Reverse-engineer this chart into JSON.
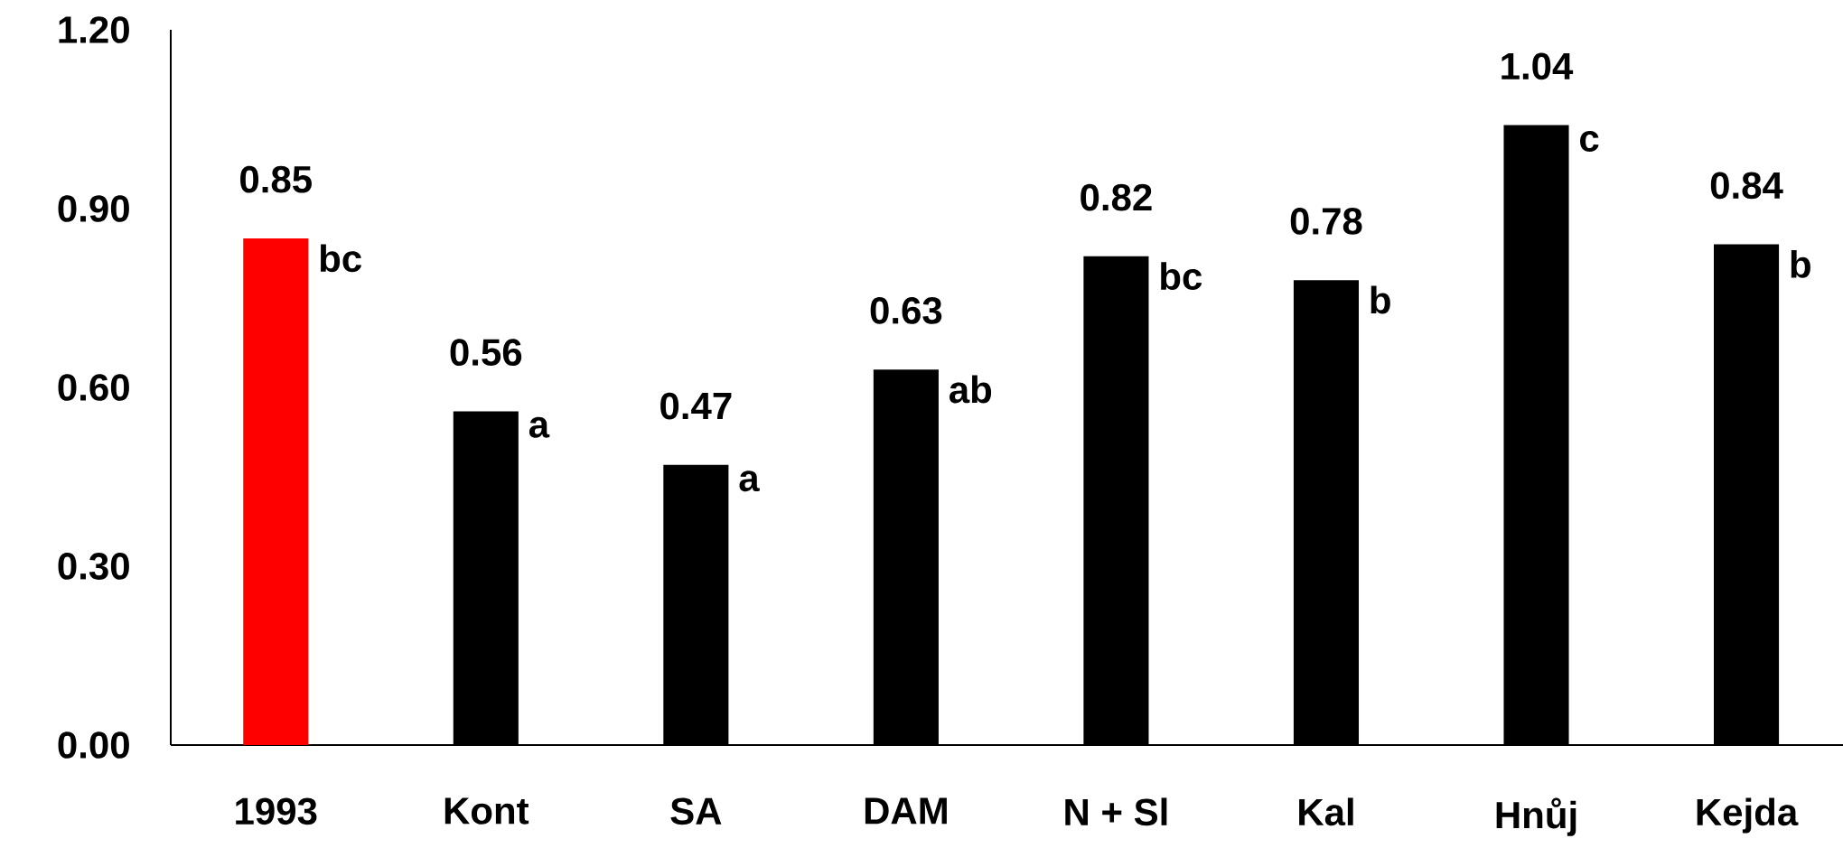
{
  "chart_data": {
    "type": "bar",
    "categories": [
      "1993",
      "Kont",
      "SA",
      "DAM",
      "N + Sl",
      "Kal",
      "Hnůj",
      "Kejda"
    ],
    "values": [
      0.85,
      0.56,
      0.47,
      0.63,
      0.82,
      0.78,
      1.04,
      0.84
    ],
    "colors": [
      "#ff0000",
      "#000000",
      "#000000",
      "#000000",
      "#000000",
      "#000000",
      "#000000",
      "#000000"
    ],
    "data_labels": true,
    "ylim": [
      0,
      1.2
    ],
    "yticks": [
      {
        "value": 0,
        "label": "0.00"
      },
      {
        "value": 0.3,
        "label": "0.30"
      },
      {
        "value": 0.6,
        "label": "0.60"
      },
      {
        "value": 0.9,
        "label": "0.90"
      },
      {
        "value": 1.2,
        "label": "1.20"
      }
    ],
    "grid": false,
    "annotations": [
      {
        "text": "bc",
        "x": "1993",
        "y": 0.85
      },
      {
        "text": "a",
        "x": "Kont",
        "y": 0.56
      },
      {
        "text": "a",
        "x": "SA",
        "y": 0.47
      },
      {
        "text": "ab",
        "x": "DAM",
        "y": 0.63
      },
      {
        "text": "bc",
        "x": "N + Sl",
        "y": 0.82
      },
      {
        "text": "b",
        "x": "Kal",
        "y": 0.78
      },
      {
        "text": "c",
        "x": "Hnůj",
        "y": 1.04
      },
      {
        "text": "b",
        "x": "Kejda",
        "y": 0.84
      }
    ]
  }
}
